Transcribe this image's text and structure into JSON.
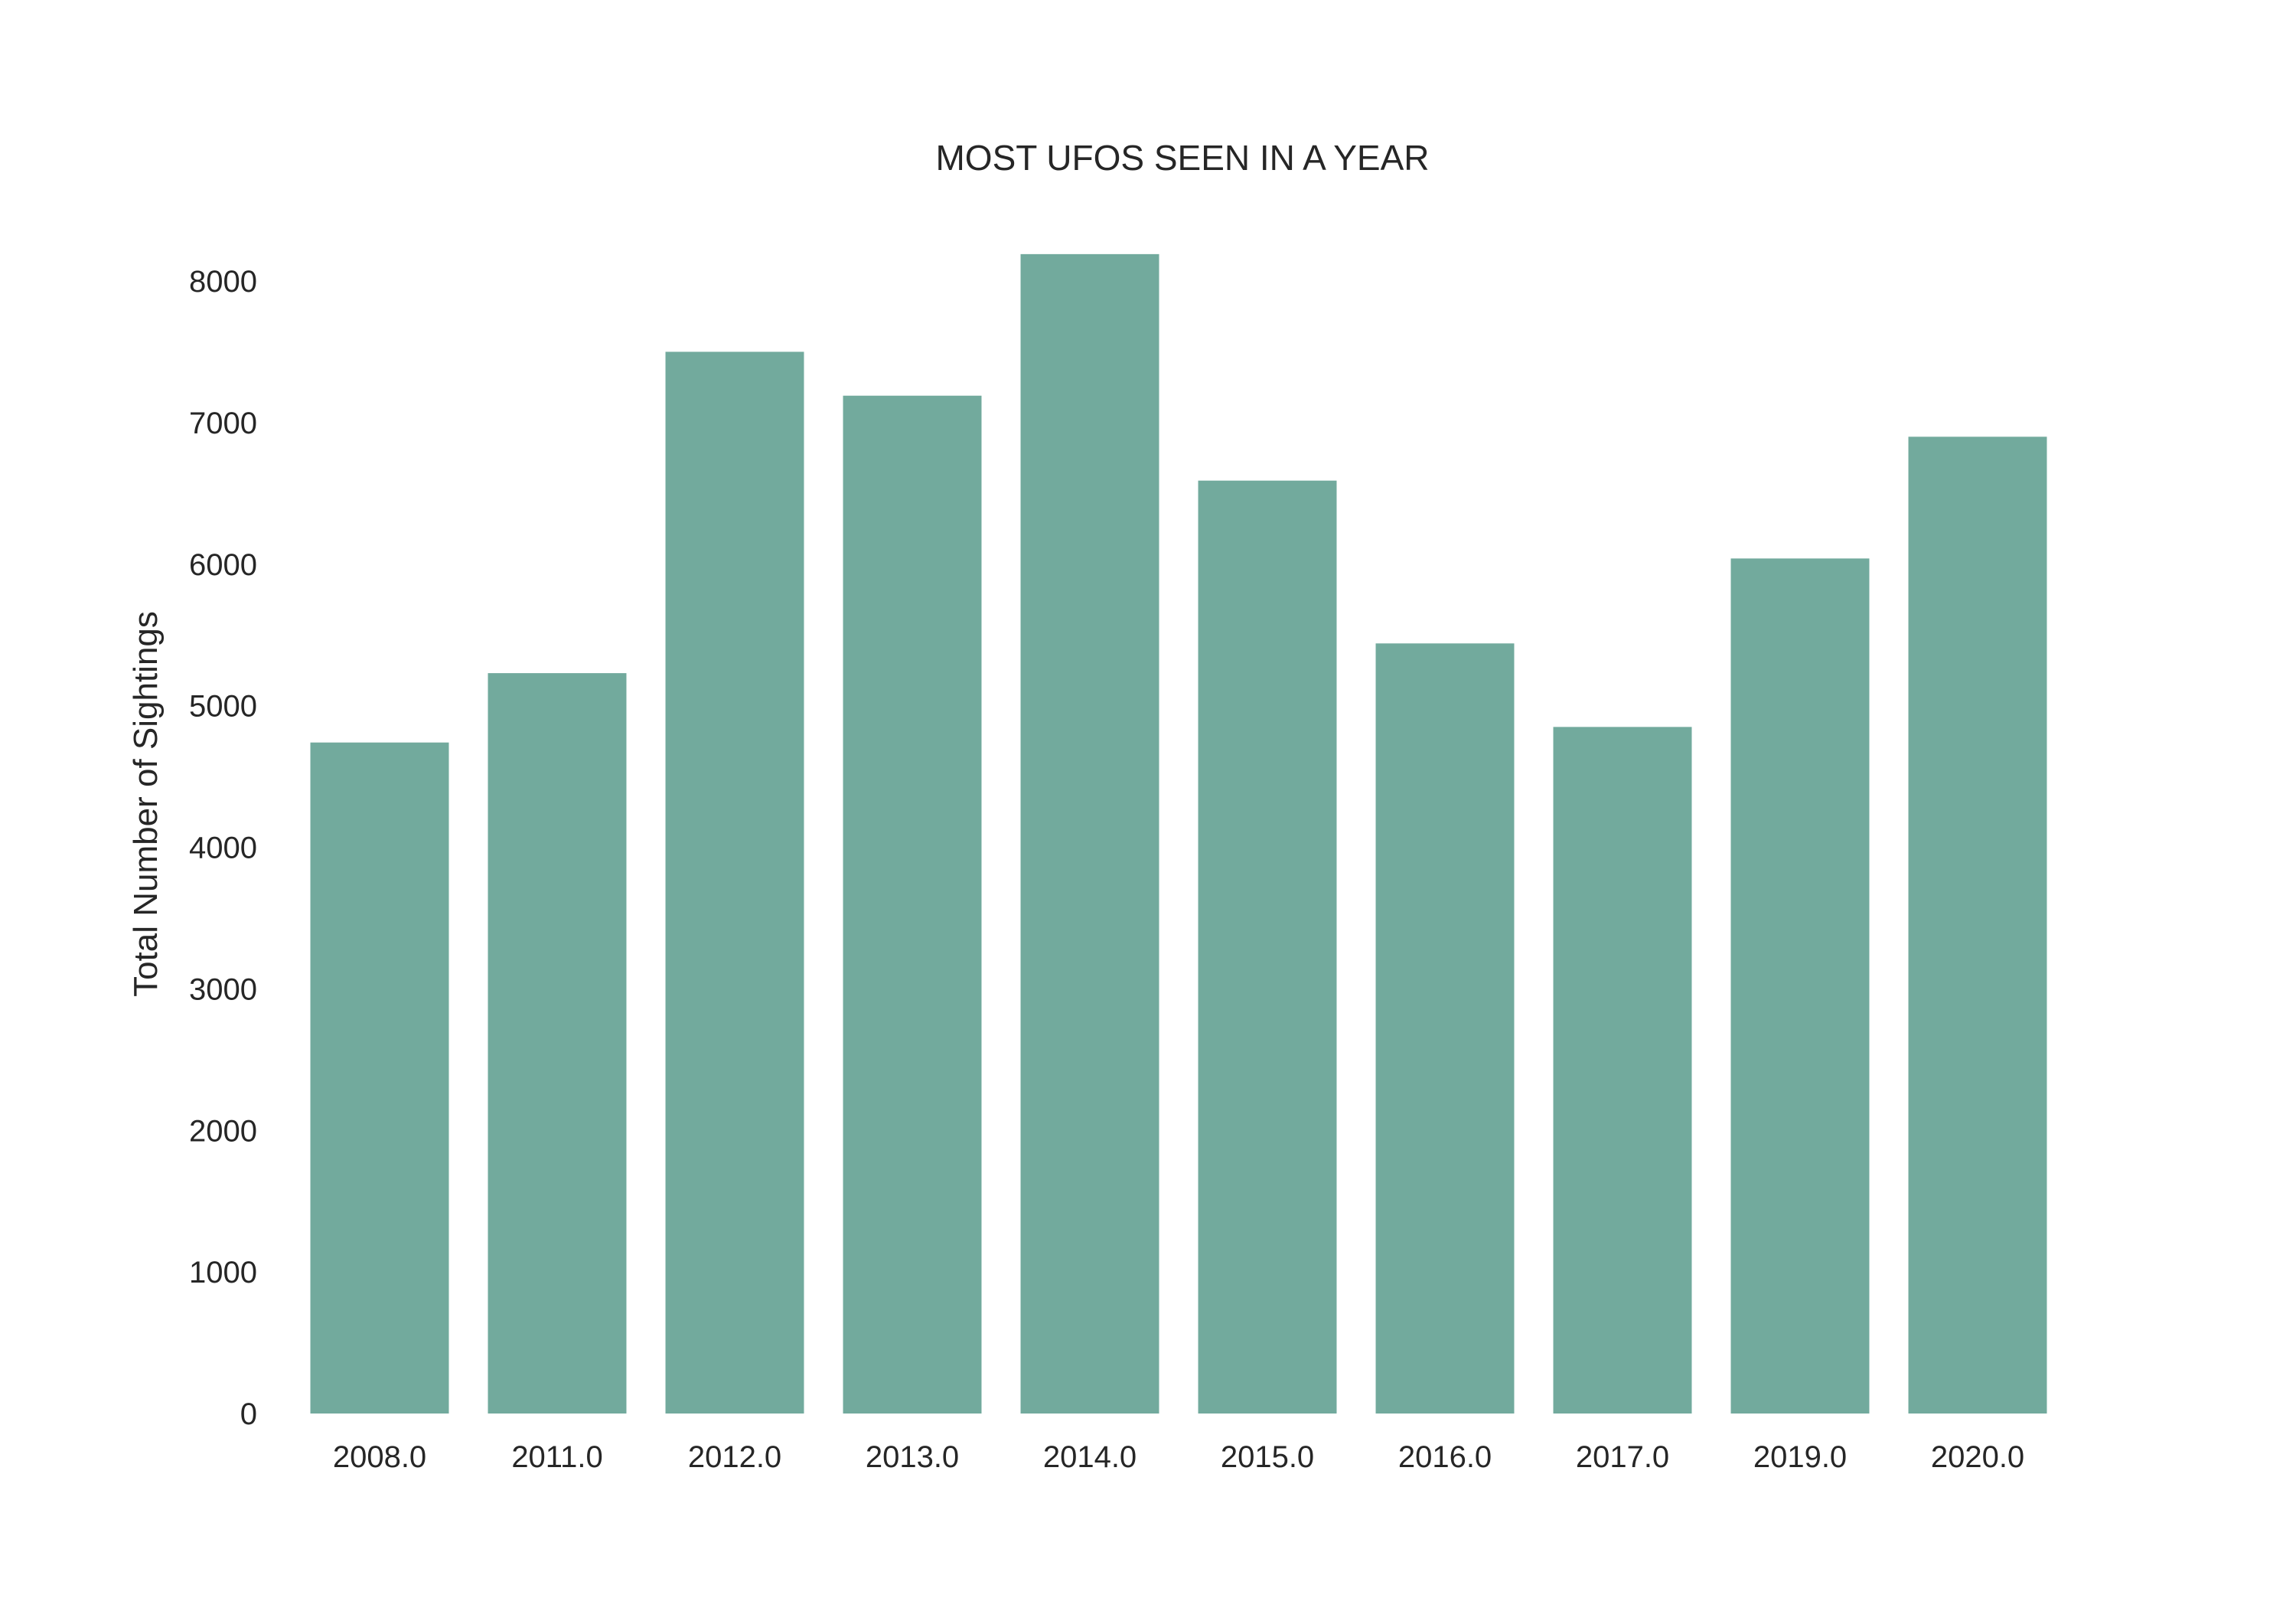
{
  "chart_data": {
    "type": "bar",
    "title": "MOST UFOS SEEN IN A YEAR",
    "xlabel": "",
    "ylabel": "Total Number of Sightings",
    "categories": [
      "2008.0",
      "2011.0",
      "2012.0",
      "2013.0",
      "2014.0",
      "2015.0",
      "2016.0",
      "2017.0",
      "2019.0",
      "2020.0"
    ],
    "values": [
      4740,
      5230,
      7500,
      7190,
      8190,
      6590,
      5440,
      4850,
      6040,
      6900
    ],
    "ylim": [
      0,
      8200
    ],
    "yticks": [
      0,
      1000,
      2000,
      3000,
      4000,
      5000,
      6000,
      7000,
      8000
    ],
    "grid": false,
    "bar_color": "#72aa9d"
  }
}
